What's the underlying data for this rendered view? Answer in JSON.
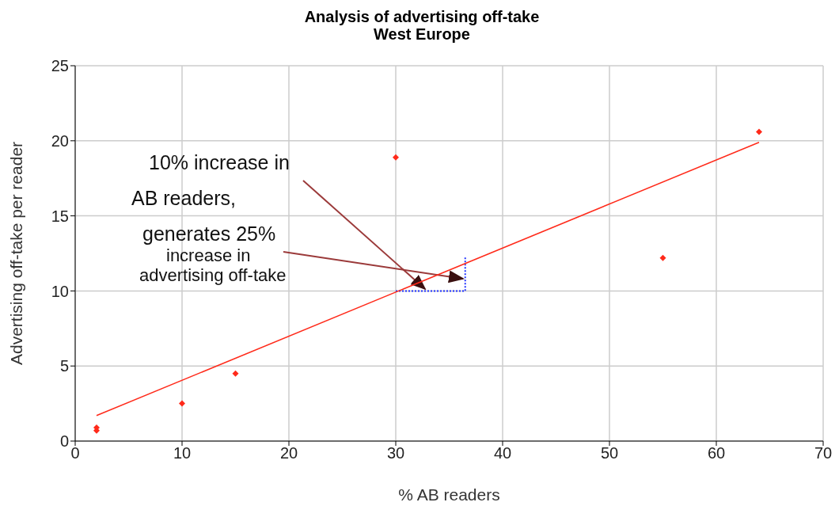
{
  "chart_data": {
    "type": "scatter",
    "title": "Analysis of advertising off-take\nWest Europe",
    "xlabel": "% AB readers",
    "ylabel": "Advertising off-take per reader",
    "series": [
      {
        "color": "#ff2a1a",
        "marker": "diamond",
        "x": [
          2,
          2,
          10,
          15,
          30,
          55,
          64
        ],
        "values": [
          0.7,
          0.9,
          2.5,
          4.5,
          18.9,
          12.2,
          20.6
        ]
      },
      {
        "type": "line",
        "color": "#ff2a1a",
        "marker": "none",
        "x": [
          2,
          64
        ],
        "values": [
          1.7,
          19.9
        ]
      }
    ],
    "xlim": [
      0,
      70
    ],
    "xticks": [
      0,
      10,
      20,
      30,
      40,
      50,
      60,
      70
    ],
    "ylim": [
      0,
      25
    ],
    "yticks": [
      0,
      5,
      10,
      15,
      20,
      25
    ],
    "grid": true,
    "annotations": [
      "10% increase in\nAB readers,",
      "generates 25%\nincrease in\nadvertising off-take"
    ]
  }
}
